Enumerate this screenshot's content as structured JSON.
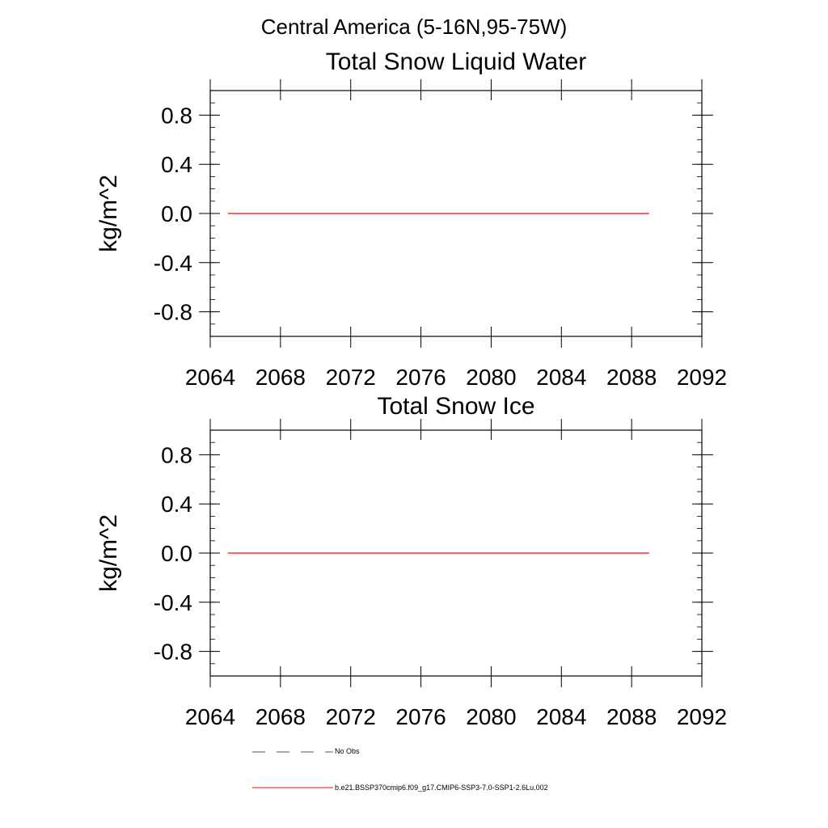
{
  "figure": {
    "suptitle": "Central America (5-16N,95-75W)"
  },
  "chart_data": [
    {
      "type": "line",
      "title": "Total Snow Liquid Water",
      "xlabel": "",
      "ylabel": "kg/m^2",
      "xlim": [
        2064,
        2092
      ],
      "ylim": [
        -1.0,
        1.0
      ],
      "xticks": [
        "2064",
        "2068",
        "2072",
        "2076",
        "2080",
        "2084",
        "2088",
        "2092"
      ],
      "yticks": [
        "-0.8",
        "-0.4",
        "0.0",
        "0.4",
        "0.8"
      ],
      "grid": false,
      "series": [
        {
          "name": "b.e21.BSSP370cmip6.f09_g17.CMIP6-SSP3-7.0-SSP1-2.6Lu.002",
          "color": "#ff0000",
          "x": [
            2065,
            2089
          ],
          "y": [
            0.0,
            0.0
          ]
        }
      ]
    },
    {
      "type": "line",
      "title": "Total Snow Ice",
      "xlabel": "",
      "ylabel": "kg/m^2",
      "xlim": [
        2064,
        2092
      ],
      "ylim": [
        -1.0,
        1.0
      ],
      "xticks": [
        "2064",
        "2068",
        "2072",
        "2076",
        "2080",
        "2084",
        "2088",
        "2092"
      ],
      "yticks": [
        "-0.8",
        "-0.4",
        "0.0",
        "0.4",
        "0.8"
      ],
      "grid": false,
      "series": [
        {
          "name": "b.e21.BSSP370cmip6.f09_g17.CMIP6-SSP3-7.0-SSP1-2.6Lu.002",
          "color": "#ff0000",
          "x": [
            2065,
            2089
          ],
          "y": [
            0.0,
            0.0
          ]
        }
      ]
    }
  ],
  "legend": {
    "placement": "bottom",
    "entries": [
      {
        "label": "No Obs",
        "color": "#4d4d80",
        "style": "dashed"
      },
      {
        "label": "b.e21.BSSP370cmip6.f09_g17.CMIP6-SSP3-7.0-SSP1-2.6Lu.002",
        "color": "#ff0000",
        "style": "solid"
      }
    ]
  }
}
